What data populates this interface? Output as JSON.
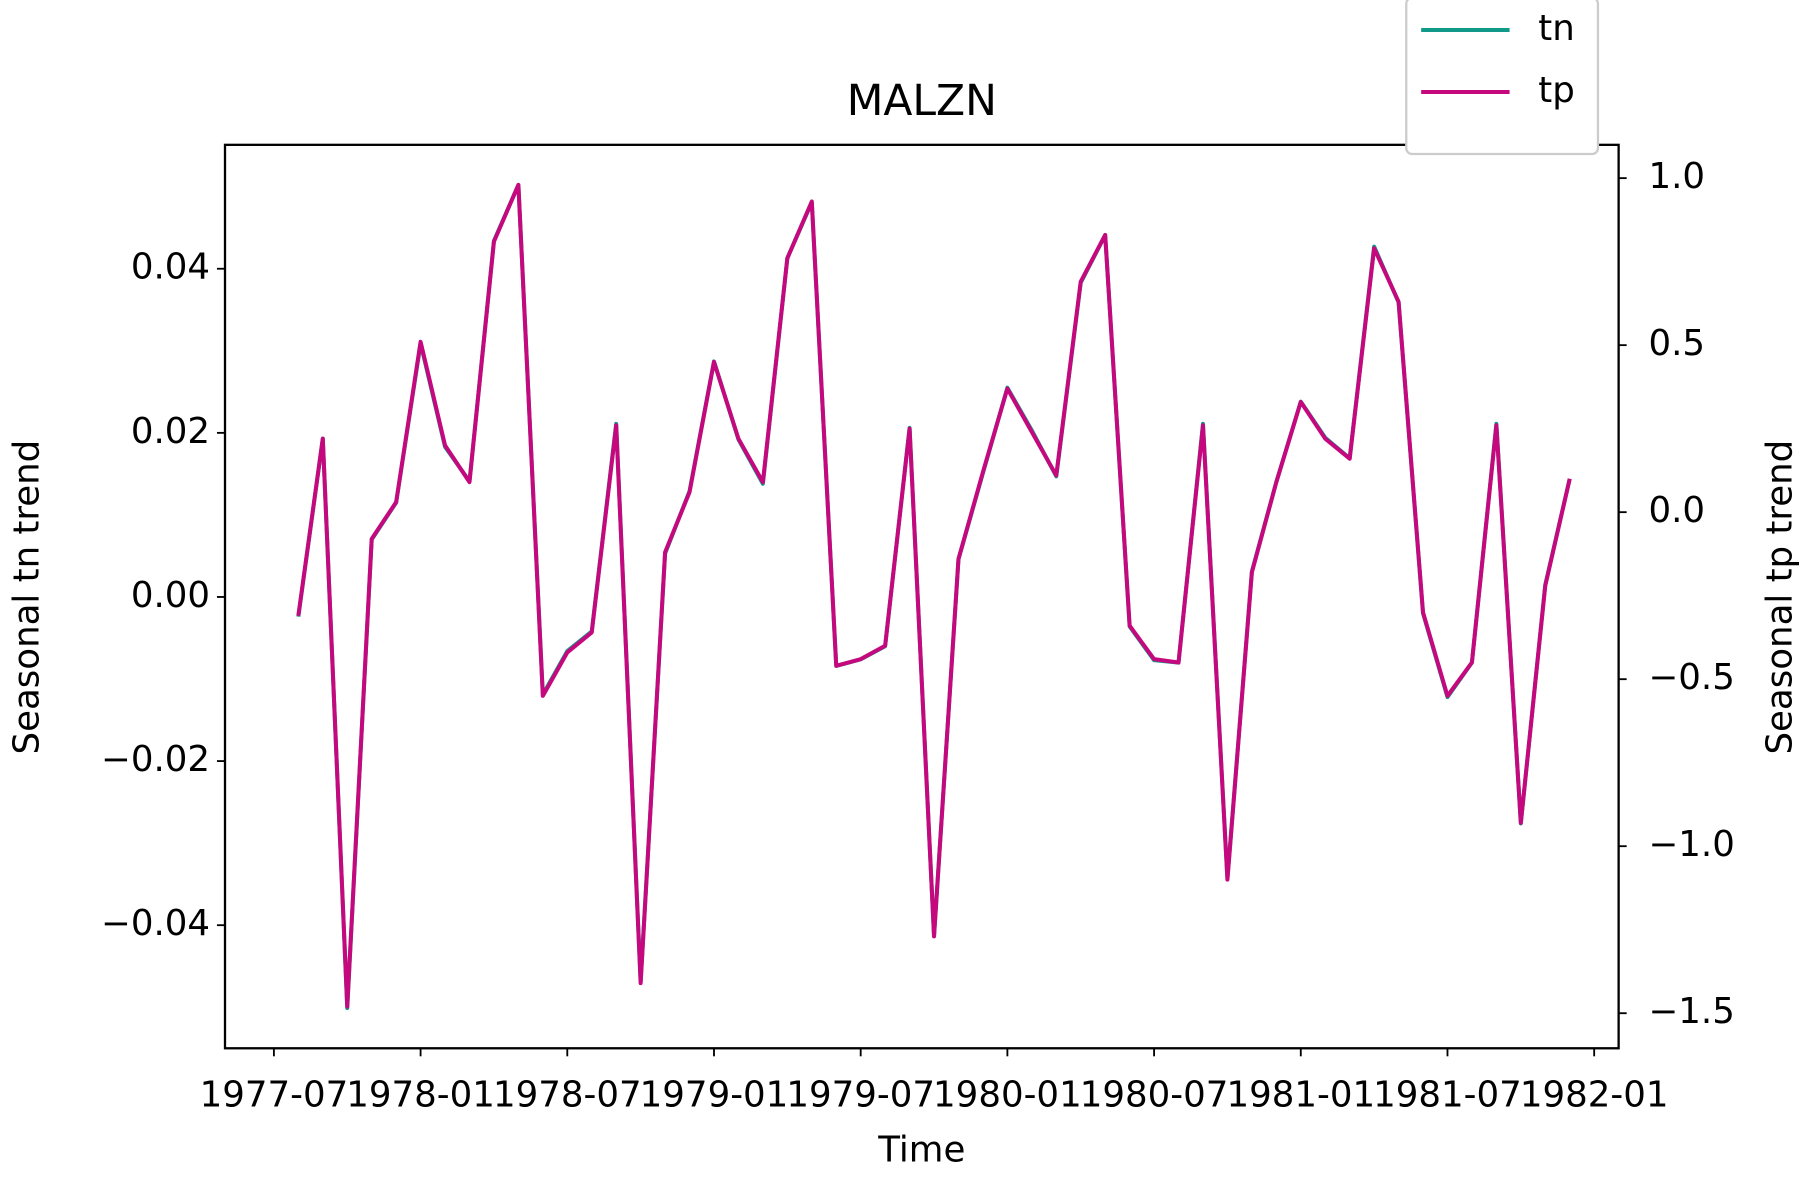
{
  "chart_data": {
    "type": "line",
    "title": "MALZN",
    "xlabel": "Time",
    "ylabel": "Seasonal tn trend",
    "y2label": "Seasonal tp trend",
    "x": [
      "1977-08",
      "1977-09",
      "1977-10",
      "1977-11",
      "1977-12",
      "1978-01",
      "1978-02",
      "1978-03",
      "1978-04",
      "1978-05",
      "1978-06",
      "1978-07",
      "1978-08",
      "1978-09",
      "1978-10",
      "1978-11",
      "1978-12",
      "1979-01",
      "1979-02",
      "1979-03",
      "1979-04",
      "1979-05",
      "1979-06",
      "1979-07",
      "1979-08",
      "1979-09",
      "1979-10",
      "1979-11",
      "1979-12",
      "1980-01",
      "1980-02",
      "1980-03",
      "1980-04",
      "1980-05",
      "1980-06",
      "1980-07",
      "1980-08",
      "1980-09",
      "1980-10",
      "1980-11",
      "1980-12",
      "1981-01",
      "1981-02",
      "1981-03",
      "1981-04",
      "1981-05",
      "1981-06",
      "1981-07",
      "1981-08",
      "1981-09",
      "1981-10",
      "1981-11",
      "1981-12"
    ],
    "series": [
      {
        "name": "tn",
        "color": "#11998a",
        "axis": "y",
        "values": [
          -0.0024,
          0.0193,
          -0.0501,
          0.007,
          0.0115,
          0.0309,
          0.0183,
          0.0141,
          0.0434,
          0.0502,
          -0.0119,
          -0.0066,
          -0.0042,
          0.0211,
          -0.0469,
          0.0053,
          0.0129,
          0.0287,
          0.0192,
          0.0138,
          0.0413,
          0.0481,
          -0.0084,
          -0.0076,
          -0.006,
          0.0206,
          -0.0413,
          0.0046,
          0.0151,
          0.0255,
          0.0203,
          0.0147,
          0.0383,
          0.0441,
          -0.0036,
          -0.0077,
          -0.008,
          0.0211,
          -0.0343,
          0.0031,
          0.014,
          0.0238,
          0.0194,
          0.0169,
          0.0427,
          0.0359,
          -0.002,
          -0.0122,
          -0.008,
          0.0211,
          -0.0276,
          0.0015,
          0.0144
        ]
      },
      {
        "name": "tp",
        "color": "#c5087e",
        "axis": "y2",
        "values": [
          -0.31,
          0.22,
          -1.48,
          -0.08,
          0.03,
          0.51,
          0.2,
          0.09,
          0.81,
          0.98,
          -0.55,
          -0.42,
          -0.36,
          0.26,
          -1.41,
          -0.12,
          0.06,
          0.45,
          0.22,
          0.09,
          0.76,
          0.93,
          -0.46,
          -0.44,
          -0.4,
          0.25,
          -1.27,
          -0.14,
          0.12,
          0.37,
          0.24,
          0.11,
          0.69,
          0.83,
          -0.34,
          -0.44,
          -0.45,
          0.26,
          -1.1,
          -0.18,
          0.09,
          0.33,
          0.22,
          0.16,
          0.79,
          0.63,
          -0.3,
          -0.55,
          -0.45,
          0.26,
          -0.93,
          -0.22,
          0.1
        ]
      }
    ],
    "xlim": [
      "1977-05",
      "1982-02"
    ],
    "xticks": [
      "1977-07",
      "1978-01",
      "1978-07",
      "1979-01",
      "1979-07",
      "1980-01",
      "1980-07",
      "1981-01",
      "1981-07",
      "1982-01"
    ],
    "ylim": [
      -0.055,
      0.0551
    ],
    "yticks": [
      {
        "value": -0.04,
        "label": "−0.04"
      },
      {
        "value": -0.02,
        "label": "−0.02"
      },
      {
        "value": 0,
        "label": "0.00"
      },
      0.02,
      0.04
    ],
    "y2lim": [
      -1.605,
      1.0997
    ],
    "y2ticks": [
      {
        "value": -1.5,
        "label": "−1.5"
      },
      {
        "value": -1.0,
        "label": "−1.0"
      },
      {
        "value": -0.5,
        "label": "−0.5"
      },
      {
        "value": 0,
        "label": "0.0"
      },
      0.5,
      {
        "value": 1.0,
        "label": "1.0"
      }
    ],
    "legend": "upper right"
  }
}
